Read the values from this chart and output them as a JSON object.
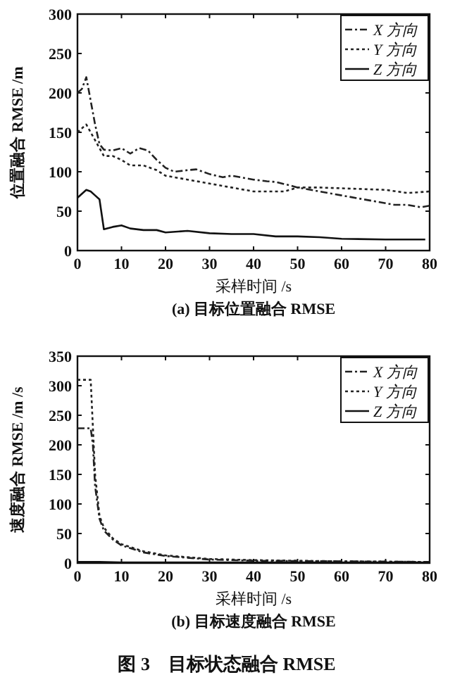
{
  "chart_data": [
    {
      "type": "line",
      "title": "(a) 目标位置融合 RMSE",
      "xlabel": "采样时间 /s",
      "ylabel": "位置融合 RMSE /m",
      "xlim": [
        0,
        80
      ],
      "xticks": [
        0,
        10,
        20,
        30,
        40,
        50,
        60,
        70,
        80
      ],
      "ylim": [
        0,
        300
      ],
      "yticks": [
        0,
        50,
        100,
        150,
        200,
        250,
        300
      ],
      "grid": false,
      "legend": "top right",
      "marker": "none",
      "series": [
        {
          "name": "X 方向",
          "color": "#222222",
          "line_style": "dashed",
          "x": [
            0,
            1,
            2,
            3,
            4,
            5,
            6,
            8,
            10,
            12,
            14,
            16,
            18,
            20,
            22,
            25,
            27,
            30,
            33,
            35,
            38,
            40,
            43,
            45,
            48,
            50,
            55,
            60,
            65,
            70,
            72,
            75,
            78,
            80
          ],
          "values": [
            200,
            205,
            220,
            190,
            160,
            135,
            128,
            127,
            130,
            123,
            130,
            127,
            115,
            105,
            100,
            102,
            103,
            97,
            93,
            95,
            92,
            90,
            88,
            87,
            83,
            80,
            75,
            70,
            65,
            60,
            58,
            58,
            55,
            57
          ]
        },
        {
          "name": "Y 方向",
          "color": "#222222",
          "line_style": "dotted",
          "x": [
            0,
            1,
            2,
            3,
            4,
            5,
            6,
            8,
            10,
            12,
            15,
            18,
            20,
            25,
            30,
            35,
            40,
            45,
            47,
            50,
            55,
            60,
            65,
            70,
            75,
            80
          ],
          "values": [
            150,
            155,
            160,
            150,
            140,
            130,
            120,
            120,
            115,
            108,
            108,
            102,
            95,
            90,
            85,
            80,
            75,
            75,
            75,
            80,
            80,
            79,
            78,
            77,
            73,
            75
          ]
        },
        {
          "name": "Z 方向",
          "color": "#111111",
          "line_style": "solid",
          "x": [
            0,
            2,
            3,
            4,
            5,
            6,
            8,
            10,
            12,
            15,
            18,
            20,
            25,
            30,
            35,
            40,
            45,
            50,
            55,
            60,
            70,
            79
          ],
          "values": [
            67,
            77,
            75,
            70,
            65,
            27,
            30,
            32,
            28,
            26,
            26,
            23,
            25,
            22,
            21,
            21,
            18,
            18,
            17,
            15,
            14,
            14
          ]
        }
      ]
    },
    {
      "type": "line",
      "title": "(b) 目标速度融合 RMSE",
      "xlabel": "采样时间 /s",
      "ylabel": "速度融合 RMSE /m /s",
      "xlim": [
        0,
        80
      ],
      "xticks": [
        0,
        10,
        20,
        30,
        40,
        50,
        60,
        70,
        80
      ],
      "ylim": [
        0,
        350
      ],
      "yticks": [
        0,
        50,
        100,
        150,
        200,
        250,
        300,
        350
      ],
      "grid": false,
      "legend": "top right",
      "marker": "none",
      "annotations": [
        "图 3　目标状态融合 RMSE"
      ],
      "series": [
        {
          "name": "X 方向",
          "color": "#222222",
          "line_style": "dashed",
          "x": [
            0,
            3,
            3.5,
            4,
            5,
            6,
            8,
            10,
            15,
            20,
            30,
            40,
            60,
            80
          ],
          "values": [
            228,
            228,
            200,
            130,
            75,
            55,
            40,
            30,
            18,
            12,
            6,
            4,
            3,
            2
          ]
        },
        {
          "name": "Y 方向",
          "color": "#222222",
          "line_style": "dotted",
          "x": [
            0,
            3,
            3.5,
            4,
            5,
            6,
            8,
            10,
            15,
            20,
            30,
            40,
            60,
            80
          ],
          "values": [
            310,
            310,
            230,
            150,
            80,
            60,
            42,
            32,
            20,
            13,
            7,
            5,
            3,
            2
          ]
        },
        {
          "name": "Z 方向",
          "color": "#111111",
          "line_style": "solid",
          "x": [
            0,
            5,
            10,
            20,
            40,
            80
          ],
          "values": [
            2,
            2,
            1,
            1,
            1,
            1
          ]
        }
      ]
    }
  ]
}
